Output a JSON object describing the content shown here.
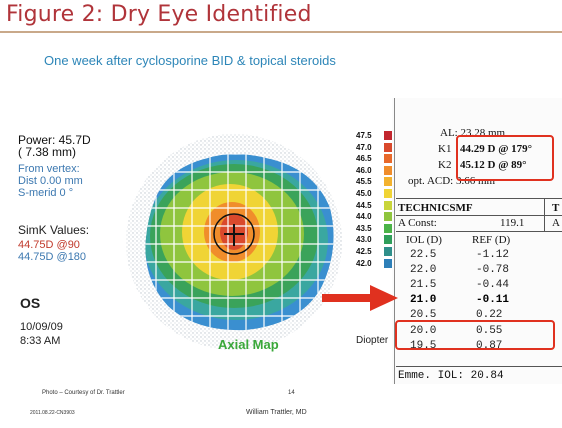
{
  "slide": {
    "title": "Figure 2: Dry Eye Identified",
    "subtitle": "One week after cyclosporine BID & topical steroids",
    "credit": "Photo – Courtesy of Dr. Trattler",
    "page_number": "14",
    "code": "2011.08.22-CN3903",
    "author": "William Trattler, MD"
  },
  "topography": {
    "power": "Power:  45.7D",
    "power_mm": "(  7.38 mm)",
    "from_vertex": "From vertex:",
    "dist": "Dist  0.00 mm",
    "s_merid": "S-merid    0 °",
    "simk_label": "SimK Values:",
    "simk_1": "44.75D @90",
    "simk_2": "44.75D @180",
    "eye": "OS",
    "date": "10/09/09",
    "time": "8:33 AM",
    "map_label": "Axial Map",
    "scale_label": "Diopter",
    "scale": [
      {
        "value": "47.5",
        "color": "#c2262e"
      },
      {
        "value": "47.0",
        "color": "#d9492c"
      },
      {
        "value": "46.5",
        "color": "#e8692a"
      },
      {
        "value": "46.0",
        "color": "#f08d2b"
      },
      {
        "value": "45.5",
        "color": "#f3b22e"
      },
      {
        "value": "45.0",
        "color": "#f0d435"
      },
      {
        "value": "44.5",
        "color": "#c9d53a"
      },
      {
        "value": "44.0",
        "color": "#8fc53e"
      },
      {
        "value": "43.5",
        "color": "#4bb348"
      },
      {
        "value": "43.0",
        "color": "#2f9e5a"
      },
      {
        "value": "42.5",
        "color": "#2f8f8a"
      },
      {
        "value": "42.0",
        "color": "#2d7fb8"
      }
    ],
    "colors": {
      "red": "#d9492c",
      "orange": "#f08d2b",
      "yellow": "#f0d435",
      "green": "#8fc53e",
      "darkgreen": "#3aa35a",
      "teal": "#3aa7a0",
      "blue": "#3a8fd0"
    }
  },
  "iol_chart": {
    "al": "AL: 23.28 mm",
    "k1_label": "K1",
    "k1_value": "44.29 D @ 179°",
    "k2_label": "K2",
    "k2_value": "45.12 D @  89°",
    "acd": "opt. ACD: 3.66 mm",
    "lens": "TECHNICSMF",
    "lens_2": "T",
    "a_const_label": "A Const:",
    "a_const_value": "119.1",
    "a_2": "A",
    "col_iol": "IOL (D)",
    "col_ref": "REF (D)",
    "rows": [
      {
        "iol": "22.5",
        "ref": "-1.12"
      },
      {
        "iol": "22.0",
        "ref": "-0.78"
      },
      {
        "iol": "21.5",
        "ref": "-0.44"
      },
      {
        "iol": "21.0",
        "ref": "-0.11"
      },
      {
        "iol": "20.5",
        "ref": "0.22"
      },
      {
        "iol": "20.0",
        "ref": "0.55"
      },
      {
        "iol": "19.5",
        "ref": "0.87"
      }
    ],
    "emme": "Emme. IOL: 20.84"
  },
  "colors": {
    "title": "#b0343a",
    "subtitle": "#2d86b8",
    "highlight": "#e0311f"
  }
}
